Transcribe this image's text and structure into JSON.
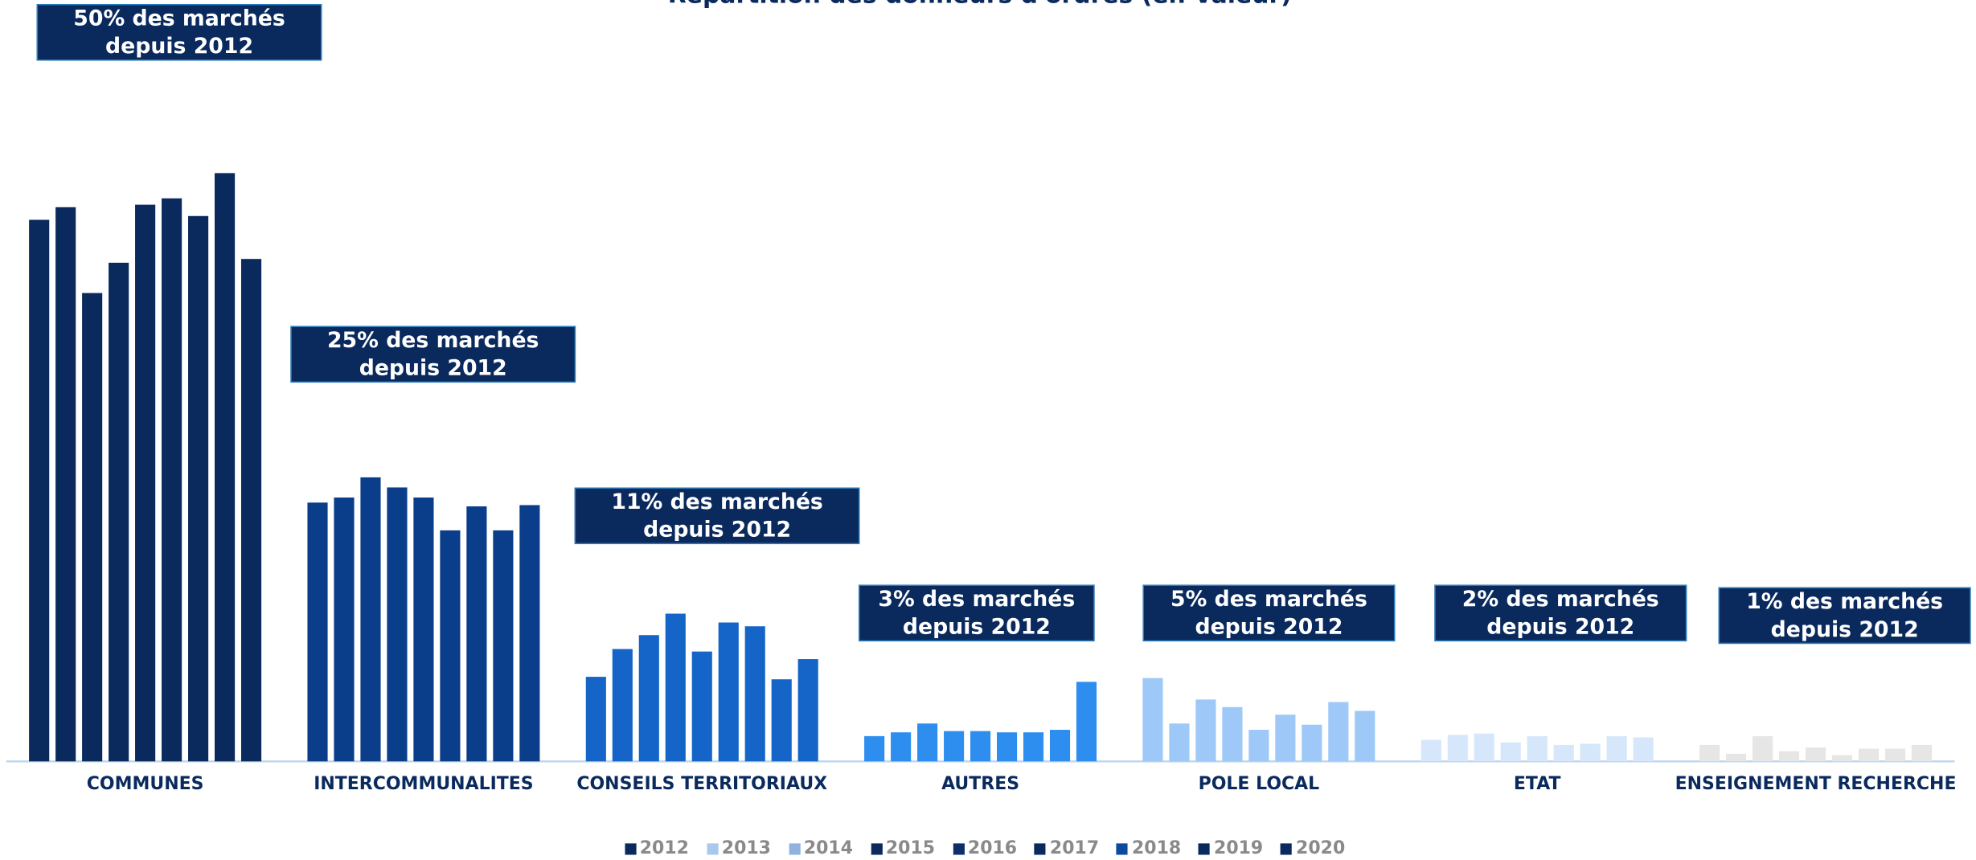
{
  "chart_data": {
    "type": "bar",
    "title": "Répartition des donneurs d'ordres (en Valeur)",
    "categories": [
      "COMMUNES",
      "INTERCOMMUNALITES",
      "CONSEILS TERRITORIAUX",
      "AUTRES",
      "POLE LOCAL",
      "ETAT",
      "ENSEIGNEMENT RECHERCHE"
    ],
    "category_colors": [
      "#0a2a5e",
      "#0a3d8a",
      "#1565c8",
      "#2e8ef0",
      "#9ec8f8",
      "#d6e7fb",
      "#e6e6e6"
    ],
    "annotations": [
      [
        "50% des marchés",
        "depuis 2012"
      ],
      [
        "25% des marchés",
        "depuis 2012"
      ],
      [
        "11% des marchés",
        "depuis 2012"
      ],
      [
        "3% des marchés",
        "depuis 2012"
      ],
      [
        "5% des marchés",
        "depuis 2012"
      ],
      [
        "2% des marchés",
        "depuis 2012"
      ],
      [
        "1% des marchés",
        "depuis 2012"
      ]
    ],
    "ylim": [
      0,
      480
    ],
    "series": [
      {
        "name": "2012",
        "color": "#0a2a5e",
        "values": [
          429,
          205,
          67,
          20,
          66,
          17,
          13
        ]
      },
      {
        "name": "2013",
        "color": "#a9c8ee",
        "values": [
          439,
          209,
          89,
          23,
          30,
          21,
          6
        ]
      },
      {
        "name": "2014",
        "color": "#8fb2df",
        "values": [
          371,
          225,
          100,
          30,
          49,
          22,
          20
        ]
      },
      {
        "name": "2015",
        "color": "#0a2a5e",
        "values": [
          395,
          217,
          117,
          24,
          43,
          15,
          8
        ]
      },
      {
        "name": "2016",
        "color": "#0b2f6b",
        "values": [
          441,
          209,
          87,
          24,
          25,
          20,
          11
        ]
      },
      {
        "name": "2017",
        "color": "#0a2a5e",
        "values": [
          446,
          183,
          110,
          23,
          37,
          13,
          5
        ]
      },
      {
        "name": "2018",
        "color": "#0b4a9e",
        "values": [
          432,
          202,
          107,
          23,
          29,
          14,
          10
        ]
      },
      {
        "name": "2019",
        "color": "#0a2a5e",
        "values": [
          466,
          183,
          65,
          25,
          47,
          20,
          10
        ]
      },
      {
        "name": "2020",
        "color": "#0a2a5e",
        "values": [
          398,
          203,
          81,
          63,
          40,
          19,
          13
        ]
      }
    ]
  }
}
